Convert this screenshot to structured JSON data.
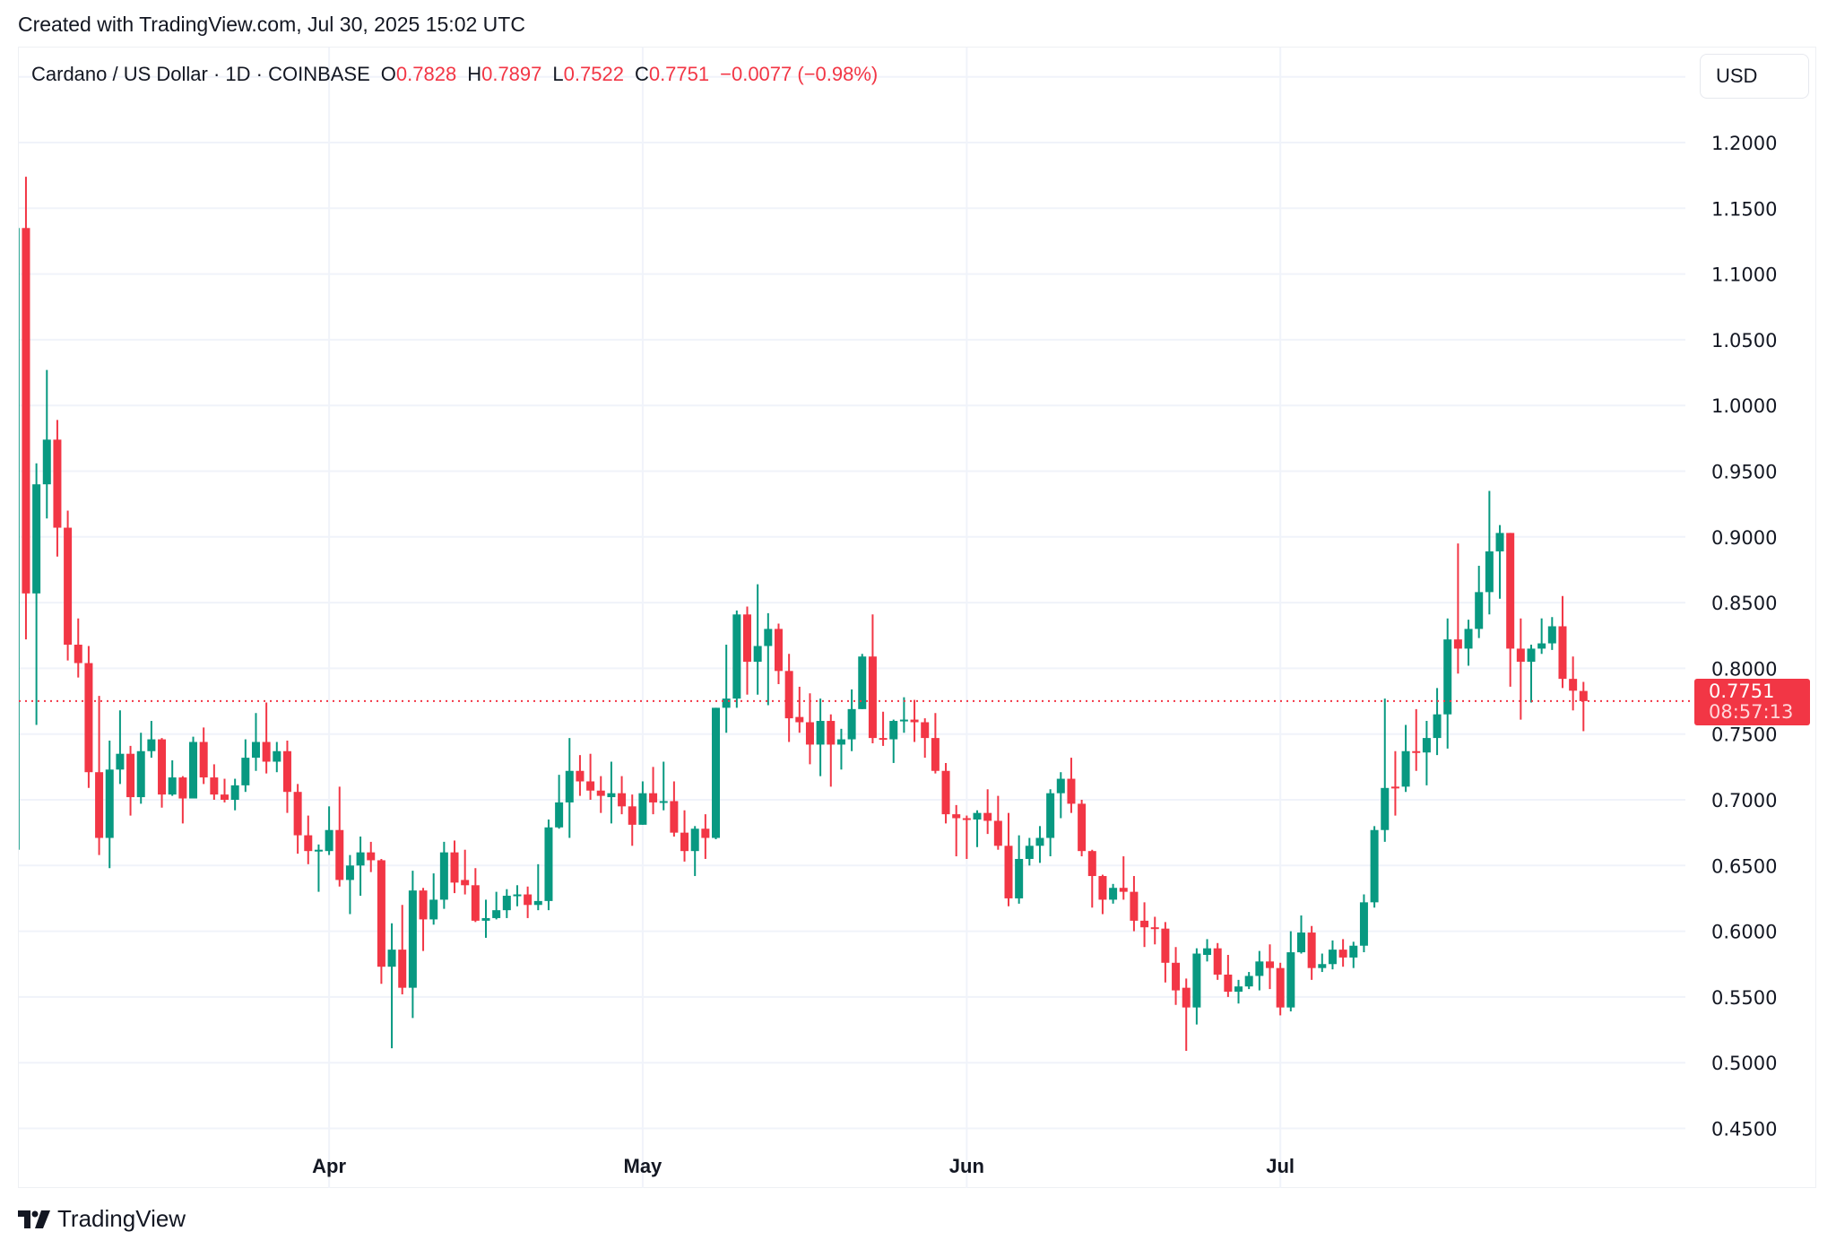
{
  "header": {
    "created": "Created with TradingView.com, Jul 30, 2025 15:02 UTC"
  },
  "legend": {
    "symbol": "Cardano / US Dollar · 1D · COINBASE",
    "o_label": "O",
    "o": "0.7828",
    "h_label": "H",
    "h": "0.7897",
    "l_label": "L",
    "l": "0.7522",
    "c_label": "C",
    "c": "0.7751",
    "change": "−0.0077 (−0.98%)"
  },
  "currency_button": "USD",
  "last_price": {
    "value": "0.7751",
    "countdown": "08:57:13"
  },
  "brand": "TradingView",
  "colors": {
    "up": "#089981",
    "down": "#f23645",
    "grid": "#f0f3fa"
  },
  "chart_data": {
    "type": "candlestick",
    "title": "Cardano / US Dollar · 1D · COINBASE",
    "ylim": [
      0.45,
      1.2
    ],
    "yticks": [
      "1.2000",
      "1.1500",
      "1.1000",
      "1.0500",
      "1.0000",
      "0.9500",
      "0.9000",
      "0.8500",
      "0.8000",
      "0.7500",
      "0.7000",
      "0.6500",
      "0.6000",
      "0.5500",
      "0.5000",
      "0.4500"
    ],
    "xticks": [
      {
        "label": "Apr",
        "index": 30
      },
      {
        "label": "May",
        "index": 60
      },
      {
        "label": "Jun",
        "index": 91
      },
      {
        "label": "Jul",
        "index": 121
      }
    ],
    "last_close": 0.7751,
    "ohlc_fields": [
      "open",
      "high",
      "low",
      "close"
    ],
    "candles": [
      [
        0.662,
        1.135,
        0.658,
        1.135
      ],
      [
        1.135,
        1.174,
        0.822,
        0.857
      ],
      [
        0.857,
        0.956,
        0.757,
        0.94
      ],
      [
        0.94,
        1.027,
        0.914,
        0.974
      ],
      [
        0.974,
        0.989,
        0.885,
        0.907
      ],
      [
        0.907,
        0.92,
        0.806,
        0.818
      ],
      [
        0.818,
        0.838,
        0.793,
        0.804
      ],
      [
        0.804,
        0.817,
        0.709,
        0.721
      ],
      [
        0.721,
        0.779,
        0.658,
        0.671
      ],
      [
        0.671,
        0.745,
        0.648,
        0.723
      ],
      [
        0.723,
        0.768,
        0.712,
        0.735
      ],
      [
        0.735,
        0.741,
        0.688,
        0.702
      ],
      [
        0.702,
        0.751,
        0.697,
        0.737
      ],
      [
        0.737,
        0.76,
        0.732,
        0.746
      ],
      [
        0.746,
        0.747,
        0.694,
        0.704
      ],
      [
        0.704,
        0.73,
        0.703,
        0.717
      ],
      [
        0.717,
        0.718,
        0.682,
        0.701
      ],
      [
        0.701,
        0.748,
        0.701,
        0.744
      ],
      [
        0.744,
        0.755,
        0.712,
        0.717
      ],
      [
        0.717,
        0.727,
        0.7,
        0.704
      ],
      [
        0.704,
        0.716,
        0.698,
        0.7
      ],
      [
        0.7,
        0.716,
        0.692,
        0.711
      ],
      [
        0.711,
        0.746,
        0.706,
        0.732
      ],
      [
        0.732,
        0.766,
        0.722,
        0.744
      ],
      [
        0.744,
        0.774,
        0.72,
        0.729
      ],
      [
        0.729,
        0.744,
        0.721,
        0.737
      ],
      [
        0.737,
        0.745,
        0.69,
        0.706
      ],
      [
        0.706,
        0.712,
        0.659,
        0.673
      ],
      [
        0.673,
        0.688,
        0.651,
        0.661
      ],
      [
        0.661,
        0.666,
        0.63,
        0.662
      ],
      [
        0.661,
        0.695,
        0.658,
        0.677
      ],
      [
        0.677,
        0.71,
        0.634,
        0.639
      ],
      [
        0.639,
        0.658,
        0.613,
        0.65
      ],
      [
        0.65,
        0.672,
        0.627,
        0.66
      ],
      [
        0.66,
        0.668,
        0.645,
        0.654
      ],
      [
        0.654,
        0.655,
        0.56,
        0.573
      ],
      [
        0.573,
        0.606,
        0.511,
        0.586
      ],
      [
        0.586,
        0.62,
        0.552,
        0.557
      ],
      [
        0.557,
        0.646,
        0.534,
        0.631
      ],
      [
        0.631,
        0.633,
        0.585,
        0.609
      ],
      [
        0.609,
        0.644,
        0.605,
        0.624
      ],
      [
        0.624,
        0.668,
        0.617,
        0.66
      ],
      [
        0.66,
        0.669,
        0.629,
        0.637
      ],
      [
        0.639,
        0.662,
        0.628,
        0.635
      ],
      [
        0.635,
        0.648,
        0.607,
        0.608
      ],
      [
        0.608,
        0.624,
        0.595,
        0.61
      ],
      [
        0.61,
        0.63,
        0.609,
        0.616
      ],
      [
        0.616,
        0.632,
        0.61,
        0.627
      ],
      [
        0.627,
        0.635,
        0.619,
        0.628
      ],
      [
        0.628,
        0.634,
        0.61,
        0.62
      ],
      [
        0.62,
        0.651,
        0.616,
        0.623
      ],
      [
        0.623,
        0.685,
        0.616,
        0.679
      ],
      [
        0.679,
        0.719,
        0.678,
        0.698
      ],
      [
        0.698,
        0.747,
        0.671,
        0.722
      ],
      [
        0.722,
        0.734,
        0.703,
        0.714
      ],
      [
        0.714,
        0.735,
        0.7,
        0.707
      ],
      [
        0.707,
        0.718,
        0.69,
        0.703
      ],
      [
        0.702,
        0.729,
        0.682,
        0.705
      ],
      [
        0.705,
        0.718,
        0.689,
        0.695
      ],
      [
        0.695,
        0.704,
        0.665,
        0.681
      ],
      [
        0.681,
        0.714,
        0.681,
        0.705
      ],
      [
        0.705,
        0.725,
        0.689,
        0.698
      ],
      [
        0.698,
        0.729,
        0.692,
        0.699
      ],
      [
        0.699,
        0.714,
        0.672,
        0.675
      ],
      [
        0.675,
        0.692,
        0.653,
        0.661
      ],
      [
        0.661,
        0.68,
        0.642,
        0.678
      ],
      [
        0.678,
        0.689,
        0.655,
        0.671
      ],
      [
        0.671,
        0.77,
        0.67,
        0.77
      ],
      [
        0.77,
        0.818,
        0.751,
        0.777
      ],
      [
        0.777,
        0.844,
        0.77,
        0.841
      ],
      [
        0.841,
        0.847,
        0.78,
        0.805
      ],
      [
        0.805,
        0.864,
        0.78,
        0.817
      ],
      [
        0.817,
        0.842,
        0.772,
        0.83
      ],
      [
        0.83,
        0.834,
        0.788,
        0.798
      ],
      [
        0.798,
        0.811,
        0.744,
        0.762
      ],
      [
        0.763,
        0.786,
        0.751,
        0.759
      ],
      [
        0.759,
        0.781,
        0.727,
        0.742
      ],
      [
        0.742,
        0.777,
        0.718,
        0.76
      ],
      [
        0.76,
        0.765,
        0.71,
        0.742
      ],
      [
        0.742,
        0.754,
        0.723,
        0.746
      ],
      [
        0.746,
        0.784,
        0.737,
        0.769
      ],
      [
        0.769,
        0.811,
        0.769,
        0.809
      ],
      [
        0.809,
        0.841,
        0.743,
        0.747
      ],
      [
        0.747,
        0.767,
        0.741,
        0.746
      ],
      [
        0.746,
        0.761,
        0.728,
        0.76
      ],
      [
        0.76,
        0.778,
        0.751,
        0.761
      ],
      [
        0.761,
        0.776,
        0.744,
        0.759
      ],
      [
        0.759,
        0.762,
        0.732,
        0.747
      ],
      [
        0.747,
        0.766,
        0.72,
        0.722
      ],
      [
        0.722,
        0.728,
        0.682,
        0.689
      ],
      [
        0.689,
        0.696,
        0.657,
        0.686
      ],
      [
        0.686,
        0.688,
        0.655,
        0.685
      ],
      [
        0.685,
        0.692,
        0.664,
        0.69
      ],
      [
        0.69,
        0.708,
        0.674,
        0.684
      ],
      [
        0.684,
        0.703,
        0.662,
        0.665
      ],
      [
        0.665,
        0.69,
        0.619,
        0.625
      ],
      [
        0.625,
        0.673,
        0.621,
        0.655
      ],
      [
        0.655,
        0.671,
        0.65,
        0.665
      ],
      [
        0.665,
        0.68,
        0.652,
        0.671
      ],
      [
        0.671,
        0.708,
        0.657,
        0.705
      ],
      [
        0.705,
        0.721,
        0.686,
        0.716
      ],
      [
        0.716,
        0.732,
        0.69,
        0.697
      ],
      [
        0.697,
        0.7,
        0.657,
        0.661
      ],
      [
        0.661,
        0.662,
        0.618,
        0.642
      ],
      [
        0.642,
        0.643,
        0.613,
        0.624
      ],
      [
        0.624,
        0.636,
        0.621,
        0.633
      ],
      [
        0.633,
        0.657,
        0.624,
        0.63
      ],
      [
        0.63,
        0.642,
        0.6,
        0.608
      ],
      [
        0.608,
        0.622,
        0.588,
        0.603
      ],
      [
        0.603,
        0.611,
        0.59,
        0.602
      ],
      [
        0.602,
        0.607,
        0.561,
        0.576
      ],
      [
        0.576,
        0.588,
        0.544,
        0.555
      ],
      [
        0.557,
        0.564,
        0.509,
        0.542
      ],
      [
        0.542,
        0.587,
        0.529,
        0.583
      ],
      [
        0.582,
        0.594,
        0.577,
        0.587
      ],
      [
        0.587,
        0.591,
        0.563,
        0.567
      ],
      [
        0.567,
        0.582,
        0.55,
        0.554
      ],
      [
        0.554,
        0.563,
        0.545,
        0.558
      ],
      [
        0.558,
        0.569,
        0.556,
        0.566
      ],
      [
        0.566,
        0.585,
        0.555,
        0.577
      ],
      [
        0.577,
        0.59,
        0.556,
        0.572
      ],
      [
        0.572,
        0.576,
        0.536,
        0.542
      ],
      [
        0.542,
        0.6,
        0.539,
        0.584
      ],
      [
        0.584,
        0.612,
        0.583,
        0.599
      ],
      [
        0.599,
        0.604,
        0.563,
        0.572
      ],
      [
        0.572,
        0.583,
        0.569,
        0.575
      ],
      [
        0.575,
        0.593,
        0.571,
        0.586
      ],
      [
        0.586,
        0.594,
        0.573,
        0.58
      ],
      [
        0.58,
        0.592,
        0.572,
        0.589
      ],
      [
        0.589,
        0.628,
        0.584,
        0.622
      ],
      [
        0.622,
        0.68,
        0.618,
        0.677
      ],
      [
        0.677,
        0.777,
        0.668,
        0.709
      ],
      [
        0.71,
        0.737,
        0.688,
        0.709
      ],
      [
        0.71,
        0.757,
        0.706,
        0.737
      ],
      [
        0.737,
        0.769,
        0.722,
        0.736
      ],
      [
        0.736,
        0.76,
        0.711,
        0.747
      ],
      [
        0.747,
        0.785,
        0.734,
        0.765
      ],
      [
        0.765,
        0.838,
        0.739,
        0.822
      ],
      [
        0.822,
        0.895,
        0.796,
        0.815
      ],
      [
        0.815,
        0.837,
        0.802,
        0.83
      ],
      [
        0.83,
        0.878,
        0.823,
        0.858
      ],
      [
        0.858,
        0.935,
        0.841,
        0.889
      ],
      [
        0.889,
        0.909,
        0.853,
        0.903
      ],
      [
        0.903,
        0.903,
        0.786,
        0.815
      ],
      [
        0.815,
        0.838,
        0.761,
        0.805
      ],
      [
        0.805,
        0.818,
        0.774,
        0.815
      ],
      [
        0.815,
        0.838,
        0.811,
        0.819
      ],
      [
        0.819,
        0.839,
        0.814,
        0.832
      ],
      [
        0.832,
        0.855,
        0.785,
        0.792
      ],
      [
        0.792,
        0.809,
        0.768,
        0.783
      ],
      [
        0.7828,
        0.7897,
        0.7522,
        0.7751
      ]
    ]
  }
}
